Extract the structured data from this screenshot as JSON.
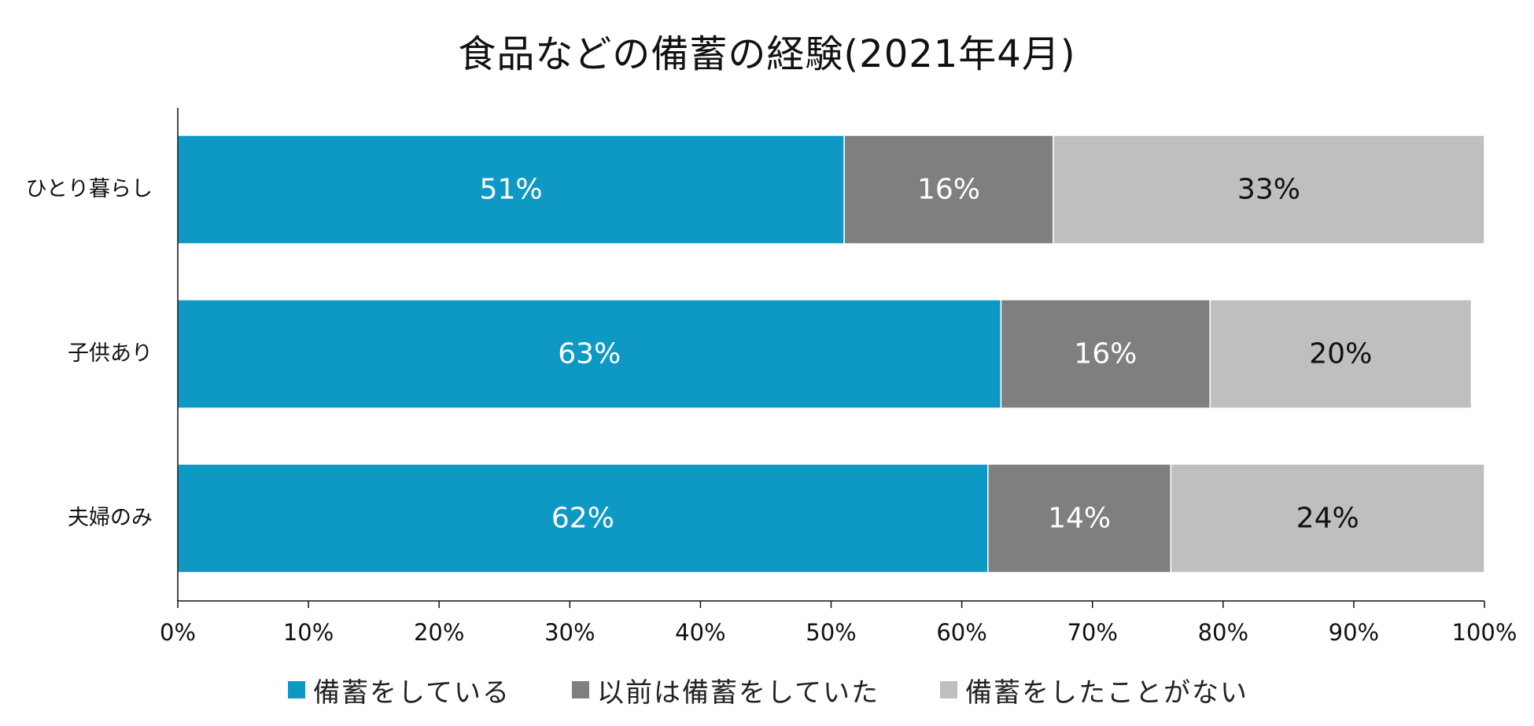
{
  "chart_data": {
    "type": "bar",
    "orientation": "horizontal",
    "stacked": "percent",
    "title": "食品などの備蓄の経験(2021年4月)",
    "categories": [
      "ひとり暮らし",
      "子供あり",
      "夫婦のみ"
    ],
    "series": [
      {
        "name": "備蓄をしている",
        "color": "#0e99c4",
        "label_color": "#ffffff",
        "values": [
          51,
          63,
          62
        ],
        "labels": [
          "51%",
          "63%",
          "62%"
        ]
      },
      {
        "name": "以前は備蓄をしていた",
        "color": "#7f7f7f",
        "label_color": "#ffffff",
        "values": [
          16,
          16,
          14
        ],
        "labels": [
          "16%",
          "16%",
          "14%"
        ]
      },
      {
        "name": "備蓄をしたことがない",
        "color": "#bfbfbf",
        "label_color": "#111111",
        "values": [
          33,
          20,
          24
        ],
        "labels": [
          "33%",
          "20%",
          "24%"
        ]
      }
    ],
    "xlim": [
      0,
      100
    ],
    "xticks": [
      "0%",
      "10%",
      "20%",
      "30%",
      "40%",
      "50%",
      "60%",
      "70%",
      "80%",
      "90%",
      "100%"
    ],
    "xlabel": "",
    "ylabel": "",
    "grid": false,
    "legend_position": "bottom"
  }
}
